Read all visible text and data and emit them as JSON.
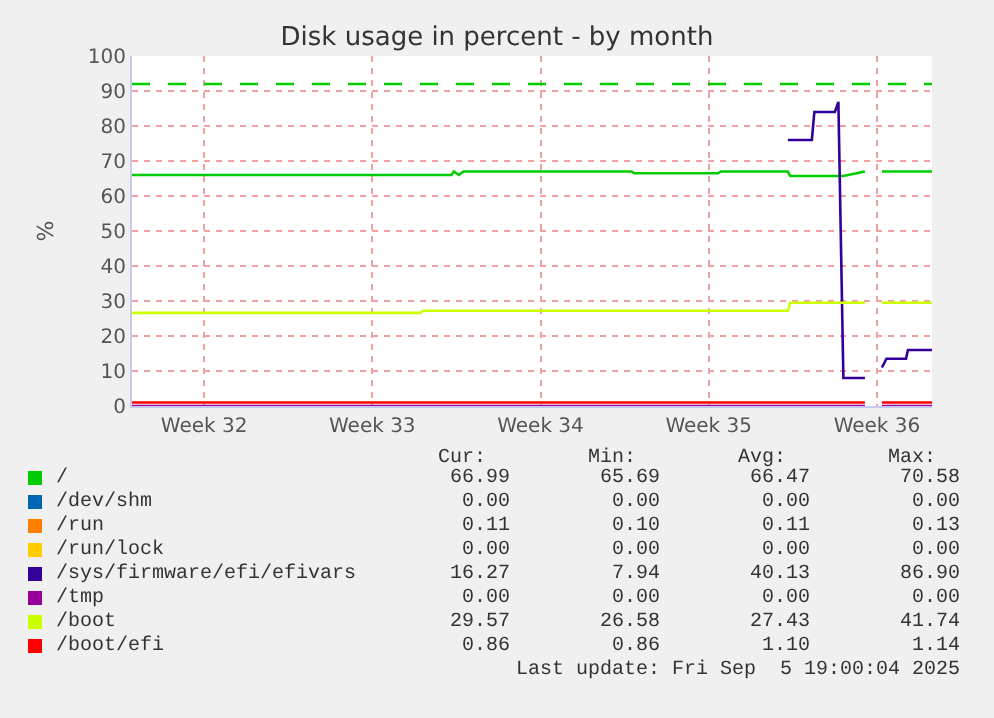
{
  "chart_data": {
    "type": "line",
    "title": "Disk usage in percent - by month",
    "ylabel": "%",
    "x": [
      "2025-08-03T12:00",
      "2025-08-15T12:00",
      "2025-08-15T14:30",
      "2025-08-16T19:00",
      "2025-08-16T21:30",
      "2025-08-17T02:30",
      "2025-08-17T07:00",
      "2025-08-24T07:00",
      "2025-08-24T09:30",
      "2025-08-27T21:30",
      "2025-08-28T00:00",
      "2025-08-30T19:00",
      "2025-08-30T21:30",
      "2025-08-31T19:00",
      "2025-08-31T21:30",
      "2025-09-01T18:00",
      "2025-09-01T21:30",
      "2025-09-02T02:30",
      "2025-09-03T00:00",
      "2025-09-03T02:30",
      "2025-09-03T17:00",
      "2025-09-03T21:30",
      "2025-09-04T17:00",
      "2025-09-04T19:00",
      "2025-09-05T19:00"
    ],
    "series": [
      {
        "name": "/",
        "color": "#00cc00",
        "values": [
          66,
          66,
          66,
          66,
          67,
          66,
          67,
          67,
          66.5,
          66.5,
          67,
          67,
          65.7,
          65.7,
          65.7,
          65.7,
          65.7,
          65.7,
          67,
          null,
          67,
          67,
          67,
          67,
          67
        ]
      },
      {
        "name": "/dev/shm",
        "color": "#0066b3",
        "values": [
          null,
          null,
          null,
          null,
          null,
          null,
          null,
          null,
          null,
          null,
          null,
          null,
          null,
          null,
          null,
          null,
          null,
          null,
          null,
          null,
          null,
          null,
          null,
          null,
          null
        ]
      },
      {
        "name": "/run",
        "color": "#ff8000",
        "values": [
          null,
          null,
          null,
          null,
          null,
          null,
          null,
          null,
          null,
          null,
          null,
          null,
          null,
          null,
          null,
          null,
          null,
          null,
          null,
          null,
          null,
          null,
          null,
          null,
          null
        ]
      },
      {
        "name": "/run/lock",
        "color": "#ffcc00",
        "values": [
          null,
          null,
          null,
          null,
          null,
          null,
          null,
          null,
          null,
          null,
          null,
          null,
          null,
          null,
          null,
          null,
          null,
          null,
          null,
          null,
          null,
          null,
          null,
          null,
          null
        ]
      },
      {
        "name": "/sys/firmware/efi/efivars",
        "color": "#330099",
        "values": [
          null,
          null,
          null,
          null,
          null,
          null,
          null,
          null,
          null,
          null,
          null,
          76,
          76,
          76,
          84,
          84,
          86.9,
          8,
          8,
          null,
          11,
          13.5,
          13.5,
          16,
          16
        ]
      },
      {
        "name": "/tmp",
        "color": "#990099",
        "values": [
          0,
          0,
          0,
          0,
          0,
          0,
          0,
          0,
          0,
          0,
          0,
          0,
          0,
          0,
          0,
          0,
          0,
          0,
          0,
          null,
          0,
          0,
          0,
          0,
          0
        ]
      },
      {
        "name": "/boot",
        "color": "#ccff00",
        "values": [
          26.6,
          26.6,
          27.2,
          27.2,
          27.2,
          27.2,
          27.2,
          27.2,
          27.2,
          27.2,
          27.2,
          27.2,
          29.5,
          29.5,
          29.5,
          29.5,
          29.5,
          29.5,
          29.5,
          null,
          29.5,
          29.5,
          29.5,
          29.5,
          29.5
        ]
      },
      {
        "name": "/boot/efi",
        "color": "#ff0000",
        "values": [
          1,
          1,
          1,
          1,
          1,
          1,
          1,
          1,
          1,
          1,
          1,
          1,
          1,
          1,
          1,
          1,
          1,
          1,
          1,
          null,
          1,
          1,
          1,
          1,
          1
        ]
      }
    ],
    "xlim": [
      "2025-08-03T12:00",
      "2025-09-05T19:00"
    ],
    "xticks": [
      {
        "value": "2025-08-06T12:00",
        "label": "Week 32"
      },
      {
        "value": "2025-08-13T12:00",
        "label": "Week 33"
      },
      {
        "value": "2025-08-20T12:00",
        "label": "Week 34"
      },
      {
        "value": "2025-08-27T12:00",
        "label": "Week 35"
      },
      {
        "value": "2025-09-03T12:00",
        "label": "Week 36"
      }
    ],
    "ylim": [
      0,
      100
    ],
    "yticks": [
      0,
      10,
      20,
      30,
      40,
      50,
      60,
      70,
      80,
      90,
      100
    ],
    "ref_lines": [
      {
        "axis": "y",
        "value": 92,
        "color": "#00cc00",
        "line_style": "dashed"
      }
    ],
    "grid": true,
    "legend": "bottom",
    "marker": "none",
    "line_style": "solid",
    "annotations": [
      "Cur:",
      "Min:",
      "Avg:",
      "Max:",
      "66.99",
      "65.69",
      "66.47",
      "70.58",
      "0.00",
      "0.00",
      "0.00",
      "0.00",
      "0.11",
      "0.10",
      "0.11",
      "0.13",
      "0.00",
      "0.00",
      "0.00",
      "0.00",
      "16.27",
      "7.94",
      "40.13",
      "86.90",
      "0.00",
      "0.00",
      "0.00",
      "0.00",
      "29.57",
      "26.58",
      "27.43",
      "41.74",
      "0.86",
      "0.86",
      "1.10",
      "1.14",
      "Last update: Fri Sep  5 19:00:04 2025"
    ]
  }
}
